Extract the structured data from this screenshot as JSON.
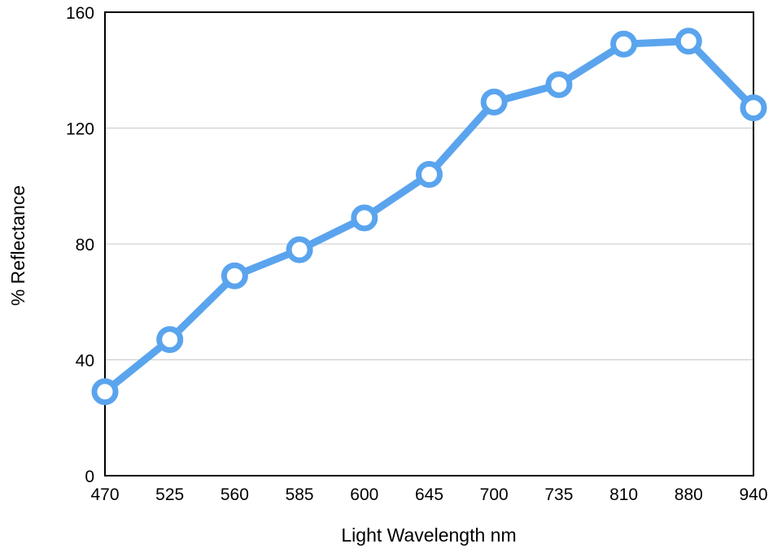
{
  "chart_data": {
    "type": "line",
    "title": "",
    "xlabel": "Light Wavelength nm",
    "ylabel": "% Reflectance",
    "categories": [
      "470",
      "525",
      "560",
      "585",
      "600",
      "645",
      "700",
      "735",
      "810",
      "880",
      "940"
    ],
    "series": [
      {
        "values": [
          29,
          47,
          69,
          78,
          89,
          104,
          129,
          135,
          149,
          150,
          127
        ],
        "color": "#5aa4ee"
      }
    ],
    "ylim": [
      0,
      160
    ],
    "yticks": [
      0,
      40,
      80,
      120,
      160
    ],
    "grid": true,
    "legend": "none"
  }
}
